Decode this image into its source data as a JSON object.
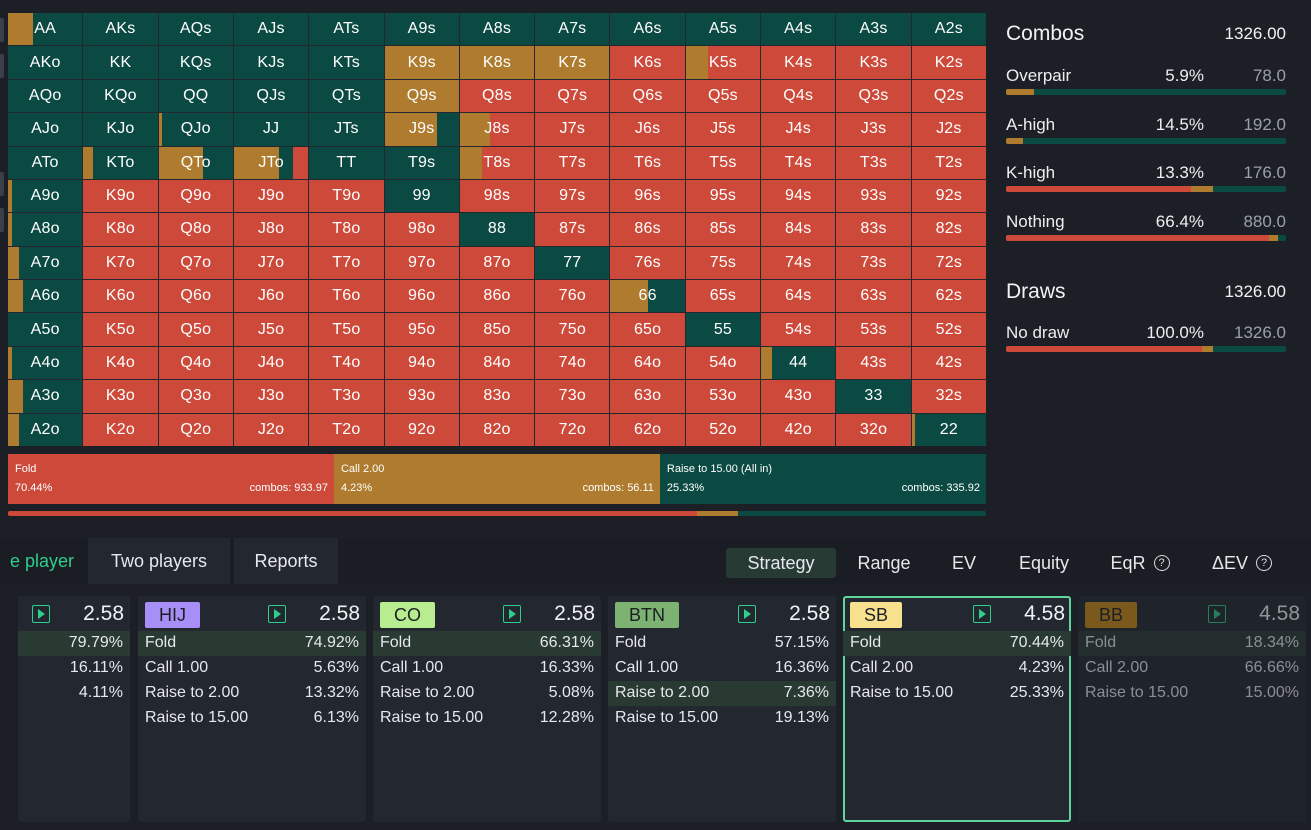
{
  "colors": {
    "fold": "#cd4a3b",
    "call": "#ae7b2f",
    "raise": "#0b4a42"
  },
  "grid": {
    "rows": [
      [
        "AA",
        "AKs",
        "AQs",
        "AJs",
        "ATs",
        "A9s",
        "A8s",
        "A7s",
        "A6s",
        "A5s",
        "A4s",
        "A3s",
        "A2s"
      ],
      [
        "AKo",
        "KK",
        "KQs",
        "KJs",
        "KTs",
        "K9s",
        "K8s",
        "K7s",
        "K6s",
        "K5s",
        "K4s",
        "K3s",
        "K2s"
      ],
      [
        "AQo",
        "KQo",
        "QQ",
        "QJs",
        "QTs",
        "Q9s",
        "Q8s",
        "Q7s",
        "Q6s",
        "Q5s",
        "Q4s",
        "Q3s",
        "Q2s"
      ],
      [
        "AJo",
        "KJo",
        "QJo",
        "JJ",
        "JTs",
        "J9s",
        "J8s",
        "J7s",
        "J6s",
        "J5s",
        "J4s",
        "J3s",
        "J2s"
      ],
      [
        "ATo",
        "KTo",
        "QTo",
        "JTo",
        "TT",
        "T9s",
        "T8s",
        "T7s",
        "T6s",
        "T5s",
        "T4s",
        "T3s",
        "T2s"
      ],
      [
        "A9o",
        "K9o",
        "Q9o",
        "J9o",
        "T9o",
        "99",
        "98s",
        "97s",
        "96s",
        "95s",
        "94s",
        "93s",
        "92s"
      ],
      [
        "A8o",
        "K8o",
        "Q8o",
        "J8o",
        "T8o",
        "98o",
        "88",
        "87s",
        "86s",
        "85s",
        "84s",
        "83s",
        "82s"
      ],
      [
        "A7o",
        "K7o",
        "Q7o",
        "J7o",
        "T7o",
        "97o",
        "87o",
        "77",
        "76s",
        "75s",
        "74s",
        "73s",
        "72s"
      ],
      [
        "A6o",
        "K6o",
        "Q6o",
        "J6o",
        "T6o",
        "96o",
        "86o",
        "76o",
        "66",
        "65s",
        "64s",
        "63s",
        "62s"
      ],
      [
        "A5o",
        "K5o",
        "Q5o",
        "J5o",
        "T5o",
        "95o",
        "85o",
        "75o",
        "65o",
        "55",
        "54s",
        "53s",
        "52s"
      ],
      [
        "A4o",
        "K4o",
        "Q4o",
        "J4o",
        "T4o",
        "94o",
        "84o",
        "74o",
        "64o",
        "54o",
        "44",
        "43s",
        "42s"
      ],
      [
        "A3o",
        "K3o",
        "Q3o",
        "J3o",
        "T3o",
        "93o",
        "83o",
        "73o",
        "63o",
        "53o",
        "43o",
        "33",
        "32s"
      ],
      [
        "A2o",
        "K2o",
        "Q2o",
        "J2o",
        "T2o",
        "92o",
        "82o",
        "72o",
        "62o",
        "52o",
        "42o",
        "32o",
        "22"
      ]
    ],
    "strategy": {
      "AA": [
        0,
        0.33,
        0.67
      ],
      "AKs": [
        0,
        0,
        1
      ],
      "AQs": [
        0,
        0,
        1
      ],
      "AJs": [
        0,
        0,
        1
      ],
      "ATs": [
        0,
        0,
        1
      ],
      "A9s": [
        0,
        0,
        1
      ],
      "A8s": [
        0,
        0,
        1
      ],
      "A7s": [
        0,
        0,
        1
      ],
      "A6s": [
        0,
        0,
        1
      ],
      "A5s": [
        0,
        0,
        1
      ],
      "A4s": [
        0,
        0,
        1
      ],
      "A3s": [
        0,
        0,
        1
      ],
      "A2s": [
        0,
        0,
        1
      ],
      "AKo": [
        0,
        0,
        1
      ],
      "KK": [
        0,
        0,
        1
      ],
      "KQs": [
        0,
        0,
        1
      ],
      "KJs": [
        0,
        0,
        1
      ],
      "KTs": [
        0,
        0,
        1
      ],
      "K9s": [
        0,
        1,
        0
      ],
      "K8s": [
        0,
        1,
        0
      ],
      "K7s": [
        0,
        1,
        0
      ],
      "K6s": [
        1,
        0,
        0
      ],
      "K5s": [
        0.7,
        0.3,
        0
      ],
      "K4s": [
        1,
        0,
        0
      ],
      "K3s": [
        1,
        0,
        0
      ],
      "K2s": [
        1,
        0,
        0
      ],
      "AQo": [
        0,
        0,
        1
      ],
      "KQo": [
        0,
        0,
        1
      ],
      "QQ": [
        0,
        0,
        1
      ],
      "QJs": [
        0,
        0,
        1
      ],
      "QTs": [
        0,
        0,
        1
      ],
      "Q9s": [
        0,
        1,
        0
      ],
      "Q8s": [
        1,
        0,
        0
      ],
      "Q7s": [
        1,
        0,
        0
      ],
      "Q6s": [
        1,
        0,
        0
      ],
      "Q5s": [
        1,
        0,
        0
      ],
      "Q4s": [
        1,
        0,
        0
      ],
      "Q3s": [
        1,
        0,
        0
      ],
      "Q2s": [
        1,
        0,
        0
      ],
      "AJo": [
        0,
        0,
        1
      ],
      "KJo": [
        0,
        0,
        1
      ],
      "QJo": [
        0,
        0.05,
        0.95
      ],
      "JJ": [
        0,
        0,
        1
      ],
      "JTs": [
        0,
        0,
        1
      ],
      "J9s": [
        0,
        0.7,
        0.3
      ],
      "J8s": [
        0.6,
        0.4,
        0
      ],
      "J7s": [
        1,
        0,
        0
      ],
      "J6s": [
        1,
        0,
        0
      ],
      "J5s": [
        1,
        0,
        0
      ],
      "J4s": [
        1,
        0,
        0
      ],
      "J3s": [
        1,
        0,
        0
      ],
      "J2s": [
        1,
        0,
        0
      ],
      "ATo": [
        0,
        0,
        1
      ],
      "KTo": [
        0,
        0.13,
        0.87
      ],
      "QTo": [
        0,
        0.6,
        0.4
      ],
      "JTo": [
        0.2,
        0.6,
        0.2
      ],
      "TT": [
        0,
        0,
        1
      ],
      "T9s": [
        0,
        0,
        1
      ],
      "T8s": [
        0.7,
        0.3,
        0
      ],
      "T7s": [
        1,
        0,
        0
      ],
      "T6s": [
        1,
        0,
        0
      ],
      "T5s": [
        1,
        0,
        0
      ],
      "T4s": [
        1,
        0,
        0
      ],
      "T3s": [
        1,
        0,
        0
      ],
      "T2s": [
        1,
        0,
        0
      ],
      "A9o": [
        0,
        0.05,
        0.95
      ],
      "K9o": [
        1,
        0,
        0
      ],
      "Q9o": [
        1,
        0,
        0
      ],
      "J9o": [
        1,
        0,
        0
      ],
      "T9o": [
        1,
        0,
        0
      ],
      "99": [
        0,
        0,
        1
      ],
      "98s": [
        1,
        0,
        0
      ],
      "97s": [
        1,
        0,
        0
      ],
      "96s": [
        1,
        0,
        0
      ],
      "95s": [
        1,
        0,
        0
      ],
      "94s": [
        1,
        0,
        0
      ],
      "93s": [
        1,
        0,
        0
      ],
      "92s": [
        1,
        0,
        0
      ],
      "A8o": [
        0,
        0.05,
        0.95
      ],
      "K8o": [
        1,
        0,
        0
      ],
      "Q8o": [
        1,
        0,
        0
      ],
      "J8o": [
        1,
        0,
        0
      ],
      "T8o": [
        1,
        0,
        0
      ],
      "98o": [
        1,
        0,
        0
      ],
      "88": [
        0,
        0,
        1
      ],
      "87s": [
        1,
        0,
        0
      ],
      "86s": [
        1,
        0,
        0
      ],
      "85s": [
        1,
        0,
        0
      ],
      "84s": [
        1,
        0,
        0
      ],
      "83s": [
        1,
        0,
        0
      ],
      "82s": [
        1,
        0,
        0
      ],
      "A7o": [
        0,
        0.15,
        0.85
      ],
      "K7o": [
        1,
        0,
        0
      ],
      "Q7o": [
        1,
        0,
        0
      ],
      "J7o": [
        1,
        0,
        0
      ],
      "T7o": [
        1,
        0,
        0
      ],
      "97o": [
        1,
        0,
        0
      ],
      "87o": [
        1,
        0,
        0
      ],
      "77": [
        0,
        0,
        1
      ],
      "76s": [
        1,
        0,
        0
      ],
      "75s": [
        1,
        0,
        0
      ],
      "74s": [
        1,
        0,
        0
      ],
      "73s": [
        1,
        0,
        0
      ],
      "72s": [
        1,
        0,
        0
      ],
      "A6o": [
        0,
        0.2,
        0.8
      ],
      "K6o": [
        1,
        0,
        0
      ],
      "Q6o": [
        1,
        0,
        0
      ],
      "J6o": [
        1,
        0,
        0
      ],
      "T6o": [
        1,
        0,
        0
      ],
      "96o": [
        1,
        0,
        0
      ],
      "86o": [
        1,
        0,
        0
      ],
      "76o": [
        1,
        0,
        0
      ],
      "66": [
        0,
        0.5,
        0.5
      ],
      "65s": [
        1,
        0,
        0
      ],
      "64s": [
        1,
        0,
        0
      ],
      "63s": [
        1,
        0,
        0
      ],
      "62s": [
        1,
        0,
        0
      ],
      "A5o": [
        0,
        0,
        1
      ],
      "K5o": [
        1,
        0,
        0
      ],
      "Q5o": [
        1,
        0,
        0
      ],
      "J5o": [
        1,
        0,
        0
      ],
      "T5o": [
        1,
        0,
        0
      ],
      "95o": [
        1,
        0,
        0
      ],
      "85o": [
        1,
        0,
        0
      ],
      "75o": [
        1,
        0,
        0
      ],
      "65o": [
        1,
        0,
        0
      ],
      "55": [
        0,
        0,
        1
      ],
      "54s": [
        1,
        0,
        0
      ],
      "53s": [
        1,
        0,
        0
      ],
      "52s": [
        1,
        0,
        0
      ],
      "A4o": [
        0,
        0.05,
        0.95
      ],
      "K4o": [
        1,
        0,
        0
      ],
      "Q4o": [
        1,
        0,
        0
      ],
      "J4o": [
        1,
        0,
        0
      ],
      "T4o": [
        1,
        0,
        0
      ],
      "94o": [
        1,
        0,
        0
      ],
      "84o": [
        1,
        0,
        0
      ],
      "74o": [
        1,
        0,
        0
      ],
      "64o": [
        1,
        0,
        0
      ],
      "54o": [
        1,
        0,
        0
      ],
      "44": [
        0,
        0.15,
        0.85
      ],
      "43s": [
        1,
        0,
        0
      ],
      "42s": [
        1,
        0,
        0
      ],
      "A3o": [
        0,
        0.2,
        0.8
      ],
      "K3o": [
        1,
        0,
        0
      ],
      "Q3o": [
        1,
        0,
        0
      ],
      "J3o": [
        1,
        0,
        0
      ],
      "T3o": [
        1,
        0,
        0
      ],
      "93o": [
        1,
        0,
        0
      ],
      "83o": [
        1,
        0,
        0
      ],
      "73o": [
        1,
        0,
        0
      ],
      "63o": [
        1,
        0,
        0
      ],
      "53o": [
        1,
        0,
        0
      ],
      "43o": [
        1,
        0,
        0
      ],
      "33": [
        0,
        0,
        1
      ],
      "32s": [
        1,
        0,
        0
      ],
      "A2o": [
        0,
        0.15,
        0.85
      ],
      "K2o": [
        1,
        0,
        0
      ],
      "Q2o": [
        1,
        0,
        0
      ],
      "J2o": [
        1,
        0,
        0
      ],
      "T2o": [
        1,
        0,
        0
      ],
      "92o": [
        1,
        0,
        0
      ],
      "82o": [
        1,
        0,
        0
      ],
      "72o": [
        1,
        0,
        0
      ],
      "62o": [
        1,
        0,
        0
      ],
      "52o": [
        1,
        0,
        0
      ],
      "42o": [
        1,
        0,
        0
      ],
      "32o": [
        1,
        0,
        0
      ],
      "22": [
        0,
        0.05,
        0.95
      ]
    }
  },
  "summary": [
    {
      "name": "Fold",
      "pct": "70.44%",
      "combos": "combos: 933.97",
      "share": 0.3333,
      "color": "#cd4a3b"
    },
    {
      "name": "Call 2.00",
      "pct": "4.23%",
      "combos": "combos: 56.11",
      "share": 0.3333,
      "color": "#ae7b2f"
    },
    {
      "name": "Raise to 15.00 (All in)",
      "pct": "25.33%",
      "combos": "combos: 335.92",
      "share": 0.3334,
      "color": "#0b4a42"
    }
  ],
  "mini_bar": [
    0.7044,
    0.0423,
    0.2533
  ],
  "right_panel": {
    "combos": {
      "title": "Combos",
      "total": "1326.00",
      "rows": [
        {
          "name": "Overpair",
          "pct": "5.9%",
          "count": "78.0",
          "bar": [
            0,
            0.1,
            0.9
          ]
        },
        {
          "name": "A-high",
          "pct": "14.5%",
          "count": "192.0",
          "bar": [
            0,
            0.06,
            0.94
          ]
        },
        {
          "name": "K-high",
          "pct": "13.3%",
          "count": "176.0",
          "bar": [
            0.66,
            0.08,
            0.26
          ]
        },
        {
          "name": "Nothing",
          "pct": "66.4%",
          "count": "880.0",
          "bar": [
            0.94,
            0.03,
            0.03
          ]
        }
      ]
    },
    "draws": {
      "title": "Draws",
      "total": "1326.00",
      "rows": [
        {
          "name": "No draw",
          "pct": "100.0%",
          "count": "1326.0",
          "bar": [
            0.7,
            0.04,
            0.26
          ]
        }
      ]
    }
  },
  "tabs_left": [
    {
      "label": "e player",
      "active": true
    },
    {
      "label": "Two players",
      "active": false
    },
    {
      "label": "Reports",
      "active": false
    }
  ],
  "tabs_right": [
    {
      "label": "Strategy",
      "active": true
    },
    {
      "label": "Range",
      "active": false
    },
    {
      "label": "EV",
      "active": false
    },
    {
      "label": "Equity",
      "active": false
    },
    {
      "label": "EqR",
      "active": false,
      "icon": "question-icon"
    },
    {
      "label": "ΔEV",
      "active": false,
      "icon": "question-icon"
    }
  ],
  "question_glyph": "?",
  "players": [
    {
      "position": "",
      "stack": "2.58",
      "color": "",
      "selected": false,
      "dim": false,
      "actions": [
        {
          "name": "",
          "pct": "79.79%",
          "hl": true
        },
        {
          "name": "",
          "pct": "16.11%",
          "hl": false
        },
        {
          "name": "",
          "pct": "4.11%",
          "hl": false
        }
      ]
    },
    {
      "position": "HIJ",
      "stack": "2.58",
      "color": "#a88ef7",
      "selected": false,
      "dim": false,
      "actions": [
        {
          "name": "Fold",
          "pct": "74.92%",
          "hl": true
        },
        {
          "name": "Call 1.00",
          "pct": "5.63%",
          "hl": false
        },
        {
          "name": "Raise to 2.00",
          "pct": "13.32%",
          "hl": false
        },
        {
          "name": "Raise to 15.00",
          "pct": "6.13%",
          "hl": false
        }
      ]
    },
    {
      "position": "CO",
      "stack": "2.58",
      "color": "#b7ec8f",
      "selected": false,
      "dim": false,
      "actions": [
        {
          "name": "Fold",
          "pct": "66.31%",
          "hl": true
        },
        {
          "name": "Call 1.00",
          "pct": "16.33%",
          "hl": false
        },
        {
          "name": "Raise to 2.00",
          "pct": "5.08%",
          "hl": false
        },
        {
          "name": "Raise to 15.00",
          "pct": "12.28%",
          "hl": false
        }
      ]
    },
    {
      "position": "BTN",
      "stack": "2.58",
      "color": "#7db372",
      "selected": false,
      "dim": false,
      "actions": [
        {
          "name": "Fold",
          "pct": "57.15%",
          "hl": false
        },
        {
          "name": "Call 1.00",
          "pct": "16.36%",
          "hl": false
        },
        {
          "name": "Raise to 2.00",
          "pct": "7.36%",
          "hl": true
        },
        {
          "name": "Raise to 15.00",
          "pct": "19.13%",
          "hl": false
        }
      ]
    },
    {
      "position": "SB",
      "stack": "4.58",
      "color": "#f7e18e",
      "selected": true,
      "dim": false,
      "actions": [
        {
          "name": "Fold",
          "pct": "70.44%",
          "hl": true
        },
        {
          "name": "Call 2.00",
          "pct": "4.23%",
          "hl": false
        },
        {
          "name": "Raise to 15.00",
          "pct": "25.33%",
          "hl": false
        }
      ]
    },
    {
      "position": "BB",
      "stack": "4.58",
      "color": "#c98a14",
      "selected": false,
      "dim": true,
      "actions": [
        {
          "name": "Fold",
          "pct": "18.34%",
          "hl": true
        },
        {
          "name": "Call 2.00",
          "pct": "66.66%",
          "hl": false
        },
        {
          "name": "Raise to 15.00",
          "pct": "15.00%",
          "hl": false
        }
      ]
    }
  ]
}
